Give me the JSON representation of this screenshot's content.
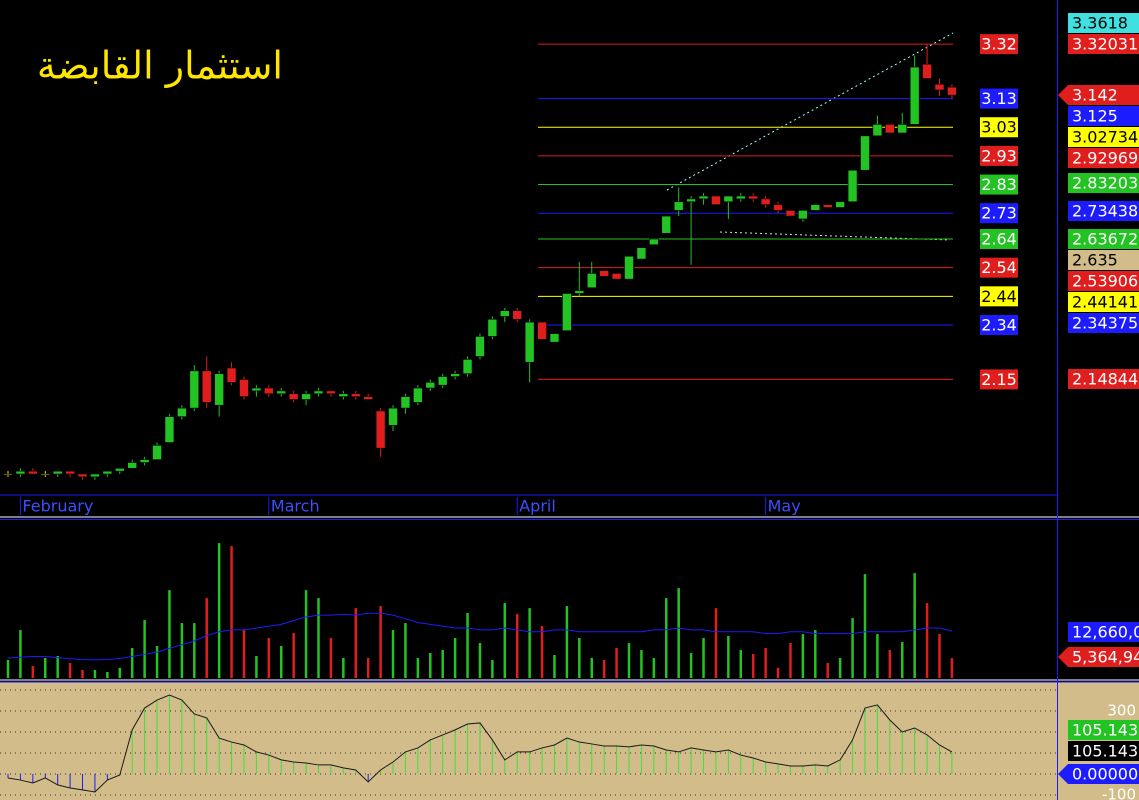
{
  "chart_data": [
    {
      "type": "candlestick",
      "title": "استثمار القابضة",
      "categories": [
        null,
        "February",
        null,
        null,
        null,
        null,
        null,
        null,
        null,
        null,
        null,
        null,
        null,
        null,
        null,
        null,
        null,
        null,
        null,
        null,
        null,
        "March",
        null,
        null,
        null,
        null,
        null,
        null,
        null,
        null,
        null,
        null,
        null,
        null,
        null,
        null,
        null,
        null,
        null,
        null,
        null,
        "April",
        null,
        null,
        null,
        null,
        null,
        null,
        null,
        null,
        null,
        null,
        null,
        null,
        null,
        null,
        null,
        null,
        null,
        null,
        null,
        "May",
        null,
        null,
        null,
        null,
        null,
        null,
        null,
        null,
        null,
        null,
        null,
        null,
        null,
        null,
        null
      ],
      "open": [
        1.82,
        1.82,
        1.83,
        1.82,
        1.82,
        1.83,
        1.82,
        1.81,
        1.82,
        1.83,
        1.84,
        1.86,
        1.87,
        1.93,
        2.02,
        2.05,
        2.18,
        2.06,
        2.19,
        2.15,
        2.11,
        2.12,
        2.1,
        2.1,
        2.08,
        2.1,
        2.11,
        2.09,
        2.1,
        2.09,
        2.04,
        1.99,
        2.05,
        2.07,
        2.12,
        2.13,
        2.16,
        2.17,
        2.23,
        2.3,
        2.37,
        2.39,
        2.21,
        2.35,
        2.28,
        2.32,
        2.45,
        2.47,
        2.53,
        2.52,
        2.5,
        2.57,
        2.62,
        2.66,
        2.74,
        2.77,
        2.78,
        2.79,
        2.77,
        2.78,
        2.79,
        2.78,
        2.76,
        2.74,
        2.71,
        2.74,
        2.76,
        2.75,
        2.77,
        2.88,
        3.0,
        3.04,
        3.01,
        3.04,
        3.25,
        3.18,
        3.17
      ],
      "high": [
        1.83,
        1.84,
        1.84,
        1.83,
        1.83,
        1.83,
        1.82,
        1.82,
        1.83,
        1.84,
        1.87,
        1.88,
        1.93,
        2.03,
        2.06,
        2.2,
        2.23,
        2.18,
        2.21,
        2.16,
        2.13,
        2.13,
        2.12,
        2.11,
        2.11,
        2.12,
        2.11,
        2.11,
        2.11,
        2.1,
        2.05,
        2.06,
        2.1,
        2.13,
        2.15,
        2.17,
        2.18,
        2.23,
        2.31,
        2.37,
        2.4,
        2.4,
        2.36,
        2.35,
        2.31,
        2.45,
        2.56,
        2.56,
        2.53,
        2.52,
        2.58,
        2.61,
        2.64,
        2.72,
        2.82,
        2.79,
        2.8,
        2.79,
        2.79,
        2.8,
        2.8,
        2.79,
        2.77,
        2.74,
        2.74,
        2.76,
        2.76,
        2.77,
        2.88,
        3.0,
        3.07,
        3.04,
        3.08,
        3.28,
        3.32,
        3.2,
        3.18
      ],
      "low": [
        1.81,
        1.81,
        1.82,
        1.81,
        1.81,
        1.81,
        1.8,
        1.8,
        1.81,
        1.82,
        1.84,
        1.85,
        1.87,
        1.93,
        2.01,
        2.04,
        2.05,
        2.02,
        2.13,
        2.08,
        2.09,
        2.09,
        2.09,
        2.07,
        2.06,
        2.09,
        2.09,
        2.08,
        2.08,
        2.08,
        1.88,
        1.97,
        2.03,
        2.06,
        2.11,
        2.12,
        2.15,
        2.16,
        2.22,
        2.29,
        2.35,
        2.35,
        2.14,
        2.29,
        2.28,
        2.32,
        2.44,
        2.47,
        2.51,
        2.5,
        2.5,
        2.57,
        2.62,
        2.66,
        2.72,
        2.55,
        2.76,
        2.76,
        2.71,
        2.77,
        2.77,
        2.75,
        2.73,
        2.72,
        2.7,
        2.74,
        2.75,
        2.75,
        2.77,
        2.88,
        3.0,
        3.01,
        3.01,
        3.04,
        3.2,
        3.14,
        3.13
      ],
      "close": [
        1.82,
        1.83,
        1.82,
        1.82,
        1.83,
        1.82,
        1.81,
        1.82,
        1.83,
        1.84,
        1.86,
        1.87,
        1.92,
        2.02,
        2.05,
        2.18,
        2.07,
        2.17,
        2.14,
        2.09,
        2.12,
        2.1,
        2.11,
        2.08,
        2.1,
        2.11,
        2.1,
        2.1,
        2.09,
        2.08,
        1.91,
        2.05,
        2.09,
        2.12,
        2.14,
        2.16,
        2.17,
        2.22,
        2.3,
        2.36,
        2.39,
        2.36,
        2.35,
        2.29,
        2.31,
        2.45,
        2.46,
        2.52,
        2.51,
        2.5,
        2.58,
        2.61,
        2.64,
        2.72,
        2.77,
        2.78,
        2.79,
        2.76,
        2.79,
        2.79,
        2.78,
        2.76,
        2.74,
        2.72,
        2.74,
        2.76,
        2.75,
        2.77,
        2.88,
        3.0,
        3.04,
        3.01,
        3.04,
        3.24,
        3.2,
        3.16,
        3.142
      ],
      "up_color": "#22c322",
      "down_color": "#e01e1e",
      "flat_color": "#ffff00",
      "ylim": [
        1.745,
        3.474
      ],
      "levels": [
        {
          "value": 3.32,
          "color": "#e01e1e"
        },
        {
          "value": 3.13,
          "color": "#1c1cff"
        },
        {
          "value": 3.03,
          "color": "#ffff00"
        },
        {
          "value": 2.93,
          "color": "#e01e1e"
        },
        {
          "value": 2.83,
          "color": "#22c322"
        },
        {
          "value": 2.73,
          "color": "#1c1cff"
        },
        {
          "value": 2.64,
          "color": "#22c322"
        },
        {
          "value": 2.54,
          "color": "#e01e1e"
        },
        {
          "value": 2.44,
          "color": "#ffff00"
        },
        {
          "value": 2.34,
          "color": "#1c1cff"
        },
        {
          "value": 2.15,
          "color": "#e01e1e"
        }
      ],
      "markers": [
        {
          "value": 3.3618,
          "color": "#40e0e0"
        },
        {
          "value": 3.32031,
          "color": "#e01e1e"
        },
        {
          "value": 3.142,
          "color": "#e01e1e",
          "pointer": true
        },
        {
          "value": 3.125,
          "color": "#1c1cff"
        },
        {
          "value": 3.02734,
          "color": "#ffff00"
        },
        {
          "value": 2.92969,
          "color": "#e01e1e"
        },
        {
          "value": 2.83203,
          "color": "#22c322"
        },
        {
          "value": 2.73438,
          "color": "#1c1cff"
        },
        {
          "value": 2.63672,
          "color": "#22c322"
        },
        {
          "value": 2.635,
          "color": "#d2bd8a"
        },
        {
          "value": 2.53906,
          "color": "#e01e1e"
        },
        {
          "value": 2.44141,
          "color": "#ffff00"
        },
        {
          "value": 2.34375,
          "color": "#1c1cff"
        },
        {
          "value": 2.14844,
          "color": "#e01e1e"
        }
      ]
    },
    {
      "type": "volume",
      "values": [
        4860000,
        12960000,
        3240000,
        5400000,
        5940000,
        4050000,
        2160000,
        2160000,
        1620000,
        2700000,
        8100000,
        15660000,
        8640000,
        23760000,
        14850000,
        14850000,
        21600000,
        36450000,
        35640000,
        12960000,
        5940000,
        10800000,
        8640000,
        12150000,
        23760000,
        21600000,
        10800000,
        5400000,
        18900000,
        5400000,
        19440000,
        12960000,
        14850000,
        5400000,
        6750000,
        7560000,
        10800000,
        17550000,
        9450000,
        4860000,
        20250000,
        17280000,
        18900000,
        14040000,
        6210000,
        19440000,
        10800000,
        5400000,
        4860000,
        8100000,
        9450000,
        7560000,
        5400000,
        21600000,
        24300000,
        6750000,
        10800000,
        18900000,
        11340000,
        7560000,
        6480000,
        8100000,
        2700000,
        9450000,
        11880000,
        12960000,
        4050000,
        5400000,
        16200000,
        28080000,
        11880000,
        7560000,
        9720000,
        28350000,
        20250000,
        11880000,
        5364940
      ],
      "ma_values": [
        5400000,
        5600000,
        5800000,
        5800000,
        5500000,
        5200000,
        5000000,
        4900000,
        5000000,
        5300000,
        5800000,
        6400000,
        7000000,
        8000000,
        9000000,
        10000000,
        11500000,
        12500000,
        13000000,
        13000000,
        13500000,
        14000000,
        14500000,
        15500000,
        16500000,
        17000000,
        17000000,
        17200000,
        17000000,
        17500000,
        17500000,
        17000000,
        16000000,
        15000000,
        14500000,
        14000000,
        13500000,
        13500000,
        13000000,
        13000000,
        13500000,
        13000000,
        12500000,
        12500000,
        13000000,
        13000000,
        12500000,
        12500000,
        12500000,
        12500000,
        12500000,
        12500000,
        13000000,
        13000000,
        13500000,
        13000000,
        13000000,
        12500000,
        12500000,
        12500000,
        12500000,
        12000000,
        12000000,
        12500000,
        12500000,
        12000000,
        12000000,
        12000000,
        12000000,
        12500000,
        12500000,
        12500000,
        12500000,
        13000000,
        13500000,
        13500000,
        12660000
      ],
      "ma_color": "#1c1cff",
      "ylim": [
        0,
        42700000
      ],
      "markers": [
        {
          "value": 12660000,
          "label": "12,660,0",
          "color": "#1c1cff"
        },
        {
          "value": 5364940,
          "label": "5,364,94",
          "color": "#e01e1e",
          "pointer": true
        }
      ]
    },
    {
      "type": "oscillator",
      "values": [
        -19,
        -29,
        -43,
        -19,
        -52,
        -67,
        -76,
        -86,
        -29,
        -5,
        210,
        314,
        352,
        376,
        352,
        286,
        267,
        171,
        152,
        138,
        105,
        90,
        67,
        57,
        52,
        43,
        43,
        29,
        19,
        -38,
        19,
        57,
        105,
        124,
        162,
        186,
        210,
        238,
        243,
        162,
        67,
        105,
        105,
        124,
        138,
        171,
        152,
        143,
        133,
        133,
        129,
        138,
        133,
        114,
        105,
        124,
        114,
        105,
        114,
        90,
        76,
        57,
        48,
        38,
        38,
        43,
        38,
        67,
        162,
        314,
        329,
        257,
        200,
        219,
        186,
        138,
        105.143
      ],
      "pos_color": "#3ee03e",
      "neg_color": "#1c1cff",
      "line_color": "#1a1a1a",
      "ylim": [
        -124,
        438
      ],
      "yticks": [
        300,
        -100
      ],
      "grid_levels": [
        -100,
        0,
        100,
        200,
        300,
        400
      ],
      "markers": [
        {
          "value": 105.143,
          "color": "#22c322"
        },
        {
          "value": 105.143,
          "color": "#000000"
        },
        {
          "value": 0,
          "label": "0.00000",
          "color": "#1c1cff",
          "pointer": true
        }
      ]
    }
  ]
}
